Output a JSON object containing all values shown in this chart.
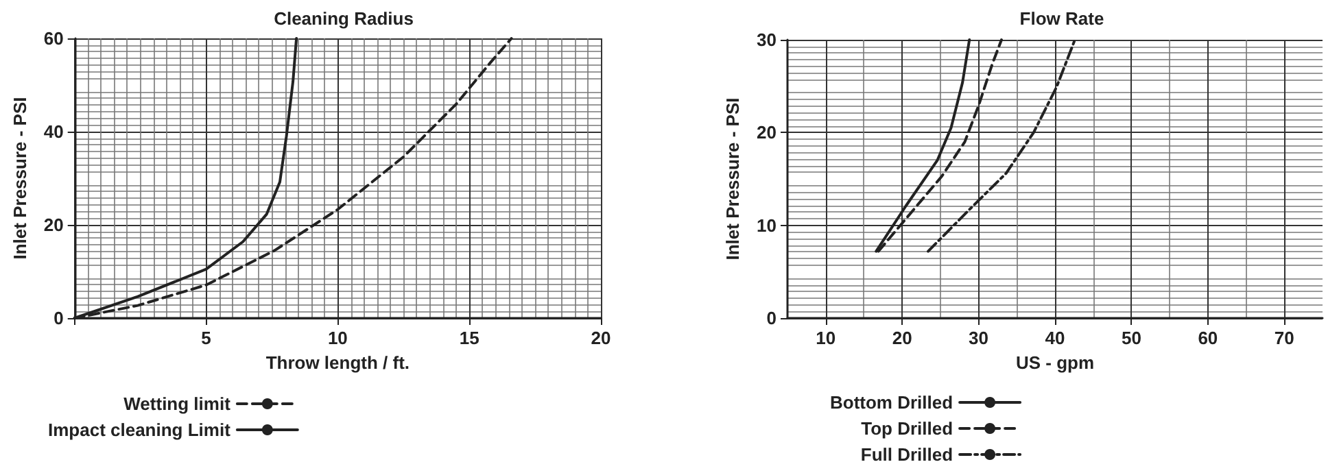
{
  "chart_data": [
    {
      "type": "line",
      "title": "Cleaning Radius",
      "xlabel": "Throw length / ft.",
      "ylabel": "Inlet Pressure - PSI",
      "xlim": [
        0,
        20
      ],
      "xticks": [
        {
          "value": 0,
          "label": null
        },
        5,
        10,
        15,
        20
      ],
      "ylim": [
        0,
        60
      ],
      "yticks": [
        0,
        20,
        40,
        60
      ],
      "grid": true,
      "legend": "bottom left",
      "marker": "none",
      "series": [
        {
          "name": "Wetting limit",
          "color": "#222222",
          "line_style": "dashed",
          "x": [
            0,
            2.4,
            5.0,
            7.6,
            10.0,
            12.5,
            14.5,
            15.8,
            16.6
          ],
          "values": [
            0,
            2.7,
            7.1,
            14.5,
            23.3,
            34.6,
            45.9,
            54.8,
            60
          ]
        },
        {
          "name": "Impact cleaning Limit",
          "color": "#222222",
          "line_style": "solid",
          "x": [
            0,
            2.4,
            5.0,
            6.4,
            7.3,
            7.8,
            8.05,
            8.3,
            8.43
          ],
          "values": [
            0,
            4.6,
            10.5,
            16.4,
            22.3,
            29.2,
            39,
            50.8,
            60
          ]
        }
      ]
    },
    {
      "type": "line",
      "title": "Flow Rate",
      "xlabel": "US - gpm",
      "ylabel": "Inlet Pressure - PSI",
      "xlim": [
        5,
        75
      ],
      "xticks": [
        10,
        20,
        30,
        40,
        50,
        60,
        70
      ],
      "ylim": [
        0,
        30
      ],
      "yticks": [
        0,
        10,
        20,
        30
      ],
      "grid": true,
      "legend": "bottom left",
      "marker": "none",
      "series": [
        {
          "name": "Bottom Drilled",
          "color": "#222222",
          "line_style": "solid",
          "x": [
            16.6,
            20.5,
            24.6,
            26.4,
            27.9,
            28.8
          ],
          "values": [
            7.2,
            12.1,
            17.0,
            20.5,
            25.4,
            30
          ]
        },
        {
          "name": "Top Drilled",
          "color": "#222222",
          "line_style": "dashed",
          "x": [
            16.9,
            21.0,
            25.2,
            28.2,
            30.0,
            31.8,
            33.0
          ],
          "values": [
            7.2,
            11.2,
            15.3,
            19.0,
            22.9,
            27.4,
            30
          ]
        },
        {
          "name": "Full Drilled",
          "color": "#222222",
          "line_style": "dashdot",
          "x": [
            23.4,
            28.8,
            33.6,
            37.2,
            40.2,
            42.6
          ],
          "values": [
            7.2,
            11.7,
            15.6,
            20.0,
            24.9,
            30
          ]
        }
      ]
    }
  ]
}
